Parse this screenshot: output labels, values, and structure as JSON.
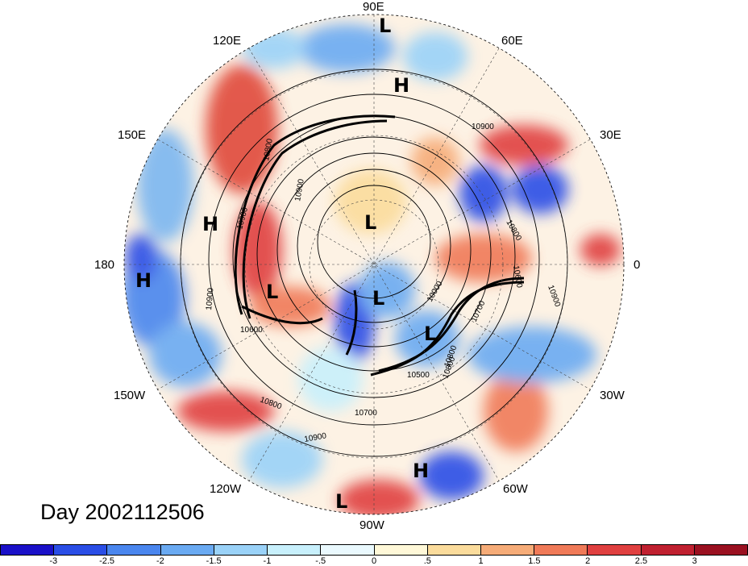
{
  "title": "Day 2002112506",
  "longitude_labels": {
    "lon_90e": "90E",
    "lon_120e": "120E",
    "lon_60e": "60E",
    "lon_150e": "150E",
    "lon_30e": "30E",
    "lon_180": "180",
    "lon_0": "0",
    "lon_150w": "150W",
    "lon_30w": "30W",
    "lon_120w": "120W",
    "lon_60w": "60W",
    "lon_90w": "90W"
  },
  "pressure_centers": [
    {
      "id": "l-top",
      "label": "L"
    },
    {
      "id": "h-top",
      "label": "H"
    },
    {
      "id": "l-center",
      "label": "L"
    },
    {
      "id": "h-west",
      "label": "H"
    },
    {
      "id": "h-far-west",
      "label": "H"
    },
    {
      "id": "l-west",
      "label": "L"
    },
    {
      "id": "l-mid",
      "label": "L"
    },
    {
      "id": "l-east",
      "label": "L"
    },
    {
      "id": "h-south",
      "label": "H"
    },
    {
      "id": "l-south",
      "label": "L"
    }
  ],
  "contour_labels": [
    "10900",
    "10900",
    "10800",
    "10600",
    "10900",
    "10800",
    "10800",
    "10900",
    "10700",
    "10900",
    "10800",
    "10600",
    "10900",
    "10000",
    "10500",
    "10700",
    "10800"
  ],
  "colorbar": {
    "ticks": [
      "-3",
      "-2.5",
      "-2",
      "-1.5",
      "-1",
      "-.5",
      "0",
      ".5",
      "1",
      "1.5",
      "2",
      "2.5",
      "3"
    ],
    "colors": [
      "#1a10c8",
      "#2a4ee6",
      "#4a86ee",
      "#6aaaf2",
      "#9ad2f8",
      "#c8f0fc",
      "#eaf9fe",
      "#fff8d8",
      "#fbdc9c",
      "#f6ac78",
      "#f07a58",
      "#e04040",
      "#c02030",
      "#9a1020"
    ]
  }
}
